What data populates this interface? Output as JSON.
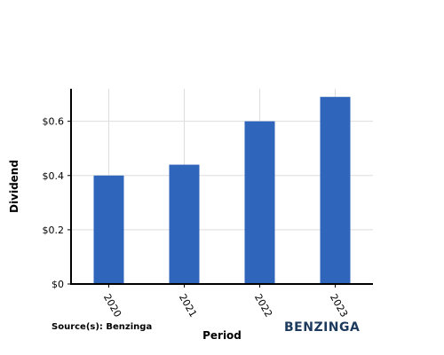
{
  "chart_data": {
    "type": "bar",
    "categories": [
      "2020",
      "2021",
      "2022",
      "2023"
    ],
    "values": [
      0.4,
      0.44,
      0.6,
      0.69
    ],
    "xlabel": "Period",
    "ylabel": "Dividend",
    "ylim": [
      0,
      0.72
    ],
    "yticks": [
      0,
      0.2,
      0.4,
      0.6
    ],
    "ytick_labels": [
      "$0",
      "$0.2",
      "$0.4",
      "$0.6"
    ],
    "grid": true,
    "bar_color": "#2f66bb"
  },
  "footer": {
    "source": "Source(s): Benzinga",
    "brand": "BENZINGA"
  }
}
